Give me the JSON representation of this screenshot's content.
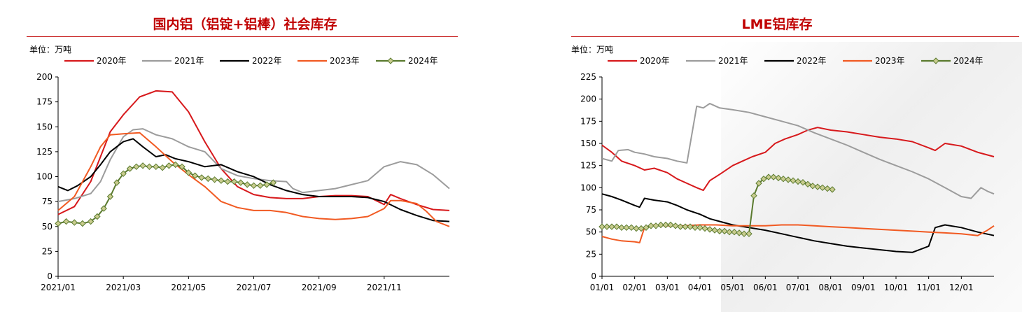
{
  "charts": [
    {
      "title": "国内铝（铝锭+铝棒）社会库存",
      "unit_label": "单位：万吨",
      "chart_data": {
        "type": "line",
        "title": "国内铝（铝锭+铝棒）社会库存",
        "unit": "万吨",
        "x_ticks": [
          "2021/01",
          "2021/03",
          "2021/05",
          "2021/07",
          "2021/09",
          "2021/11"
        ],
        "y_ticks": [
          "0",
          "25",
          "50",
          "75",
          "100",
          "125",
          "150",
          "175",
          "200"
        ],
        "ylim": [
          0,
          200
        ],
        "xlim": [
          0,
          12
        ],
        "grid": false,
        "legend": "top",
        "series": [
          {
            "name": "2020年",
            "color": "#d7191c",
            "marker": "none",
            "width": 2,
            "x": [
              0,
              0.5,
              1,
              1.3,
              1.6,
              2,
              2.5,
              3,
              3.5,
              4,
              4.5,
              5,
              5.5,
              6,
              6.5,
              7,
              7.5,
              8,
              8.5,
              9,
              9.5,
              10,
              10.2,
              10.5,
              11,
              11.5,
              12
            ],
            "y": [
              62,
              70,
              95,
              120,
              145,
              162,
              180,
              186,
              185,
              165,
              135,
              108,
              90,
              82,
              79,
              78,
              78,
              80,
              81,
              81,
              80,
              72,
              82,
              78,
              72,
              67,
              66
            ]
          },
          {
            "name": "2021年",
            "color": "#9c9c9c",
            "marker": "none",
            "width": 2,
            "x": [
              0,
              0.5,
              1,
              1.3,
              1.6,
              2,
              2.3,
              2.6,
              3,
              3.5,
              4,
              4.5,
              5,
              5.5,
              6,
              6.5,
              7,
              7.2,
              7.5,
              8,
              8.5,
              9,
              9.5,
              10,
              10.5,
              11,
              11.5,
              12
            ],
            "y": [
              75,
              78,
              83,
              95,
              117,
              140,
              147,
              148,
              142,
              138,
              130,
              125,
              108,
              101,
              98,
              96,
              95,
              88,
              84,
              86,
              88,
              92,
              96,
              110,
              115,
              112,
              102,
              88
            ]
          },
          {
            "name": "2022年",
            "color": "#000000",
            "marker": "none",
            "width": 2,
            "x": [
              0,
              0.3,
              0.6,
              1,
              1.3,
              1.6,
              2,
              2.3,
              2.6,
              3,
              3.3,
              3.6,
              4,
              4.5,
              5,
              5.5,
              6,
              6.5,
              7,
              7.5,
              8,
              8.5,
              9,
              9.5,
              10,
              10.5,
              11,
              11.5,
              12
            ],
            "y": [
              90,
              86,
              91,
              100,
              112,
              125,
              135,
              138,
              130,
              120,
              122,
              118,
              115,
              110,
              112,
              105,
              100,
              92,
              86,
              82,
              80,
              80,
              80,
              79,
              75,
              67,
              61,
              56,
              55
            ]
          },
          {
            "name": "2023年",
            "color": "#f15a22",
            "marker": "none",
            "width": 2,
            "x": [
              0,
              0.5,
              1,
              1.3,
              1.6,
              2,
              2.5,
              3,
              3.5,
              4,
              4.5,
              5,
              5.5,
              6,
              6.5,
              7,
              7.5,
              8,
              8.5,
              9,
              9.5,
              10,
              10.2,
              10.5,
              11,
              11.3,
              11.6,
              12
            ],
            "y": [
              66,
              80,
              110,
              130,
              142,
              143,
              144,
              130,
              115,
              102,
              90,
              75,
              69,
              66,
              66,
              64,
              60,
              58,
              57,
              58,
              60,
              68,
              76,
              76,
              73,
              65,
              55,
              50
            ]
          },
          {
            "name": "2024年",
            "color": "#5a7a2e",
            "marker": "diamond",
            "marker_fill": "#c9cc8f",
            "width": 2,
            "x": [
              0,
              0.25,
              0.5,
              0.75,
              1,
              1.2,
              1.4,
              1.6,
              1.8,
              2,
              2.2,
              2.4,
              2.6,
              2.8,
              3,
              3.2,
              3.4,
              3.6,
              3.8,
              4,
              4.2,
              4.4,
              4.6,
              4.8,
              5,
              5.2,
              5.4,
              5.6,
              5.8,
              6,
              6.2,
              6.4,
              6.6
            ],
            "y": [
              53,
              55,
              54,
              53,
              55,
              60,
              68,
              80,
              94,
              103,
              108,
              110,
              111,
              110,
              110,
              109,
              111,
              112,
              110,
              104,
              101,
              99,
              98,
              97,
              96,
              95,
              95,
              94,
              92,
              91,
              91,
              92,
              94
            ]
          }
        ]
      }
    },
    {
      "title": "LME铝库存",
      "unit_label": "单位：万吨",
      "chart_data": {
        "type": "line",
        "title": "LME铝库存",
        "unit": "万吨",
        "x_ticks": [
          "01/01",
          "02/01",
          "03/01",
          "04/01",
          "05/01",
          "06/01",
          "07/01",
          "08/01",
          "09/01",
          "10/01",
          "11/01",
          "12/01"
        ],
        "y_ticks": [
          "0",
          "25",
          "50",
          "75",
          "100",
          "125",
          "150",
          "175",
          "200",
          "225"
        ],
        "ylim": [
          0,
          225
        ],
        "xlim": [
          0,
          12
        ],
        "grid": false,
        "legend": "top",
        "series": [
          {
            "name": "2020年",
            "color": "#d7191c",
            "marker": "none",
            "width": 2,
            "x": [
              0,
              0.3,
              0.6,
              1,
              1.3,
              1.6,
              2,
              2.3,
              2.6,
              2.9,
              3.1,
              3.3,
              3.6,
              4,
              4.3,
              4.6,
              5,
              5.3,
              5.6,
              6,
              6.3,
              6.6,
              7,
              7.5,
              8,
              8.5,
              9,
              9.5,
              10,
              10.2,
              10.5,
              11,
              11.5,
              12
            ],
            "y": [
              148,
              140,
              130,
              125,
              120,
              122,
              117,
              110,
              105,
              100,
              97,
              108,
              115,
              125,
              130,
              135,
              140,
              150,
              155,
              160,
              165,
              168,
              165,
              163,
              160,
              157,
              155,
              152,
              145,
              142,
              150,
              147,
              140,
              135
            ]
          },
          {
            "name": "2021年",
            "color": "#9c9c9c",
            "marker": "none",
            "width": 2,
            "x": [
              0,
              0.3,
              0.5,
              0.8,
              1,
              1.3,
              1.6,
              2,
              2.3,
              2.6,
              2.9,
              3.1,
              3.3,
              3.6,
              4,
              4.5,
              5,
              5.5,
              6,
              6.5,
              7,
              7.5,
              8,
              8.5,
              9,
              9.5,
              10,
              10.5,
              11,
              11.3,
              11.6,
              11.8,
              12
            ],
            "y": [
              133,
              130,
              142,
              143,
              140,
              138,
              135,
              133,
              130,
              128,
              192,
              190,
              195,
              190,
              188,
              185,
              180,
              175,
              170,
              162,
              155,
              148,
              140,
              132,
              125,
              118,
              110,
              100,
              90,
              88,
              100,
              96,
              93
            ]
          },
          {
            "name": "2022年",
            "color": "#000000",
            "marker": "none",
            "width": 2,
            "x": [
              0,
              0.3,
              0.6,
              1,
              1.15,
              1.3,
              1.6,
              2,
              2.3,
              2.6,
              3,
              3.3,
              3.6,
              4,
              4.5,
              5,
              5.5,
              6,
              6.5,
              7,
              7.5,
              8,
              8.5,
              9,
              9.5,
              10,
              10.2,
              10.5,
              11,
              11.5,
              12
            ],
            "y": [
              93,
              90,
              86,
              80,
              78,
              88,
              86,
              84,
              80,
              75,
              70,
              65,
              62,
              58,
              55,
              52,
              48,
              44,
              40,
              37,
              34,
              32,
              30,
              28,
              27,
              34,
              55,
              58,
              55,
              50,
              46
            ]
          },
          {
            "name": "2023年",
            "color": "#f15a22",
            "marker": "none",
            "width": 2,
            "x": [
              0,
              0.3,
              0.6,
              1,
              1.15,
              1.3,
              1.6,
              2,
              2.5,
              3,
              3.5,
              4,
              4.5,
              5,
              5.5,
              6,
              6.5,
              7,
              7.5,
              8,
              8.5,
              9,
              9.5,
              10,
              10.5,
              11,
              11.5,
              11.8,
              12
            ],
            "y": [
              45,
              42,
              40,
              39,
              38,
              55,
              58,
              57,
              57,
              58,
              58,
              57,
              57,
              57,
              58,
              58,
              57,
              56,
              55,
              54,
              53,
              52,
              51,
              50,
              49,
              48,
              46,
              52,
              57
            ]
          },
          {
            "name": "2024年",
            "color": "#5a7a2e",
            "marker": "diamond",
            "marker_fill": "#c9cc8f",
            "width": 2,
            "x": [
              0,
              0.15,
              0.3,
              0.45,
              0.6,
              0.75,
              0.9,
              1.05,
              1.2,
              1.35,
              1.5,
              1.65,
              1.8,
              1.95,
              2.1,
              2.25,
              2.4,
              2.55,
              2.7,
              2.85,
              3,
              3.15,
              3.3,
              3.45,
              3.6,
              3.75,
              3.9,
              4.05,
              4.2,
              4.35,
              4.5,
              4.65,
              4.8,
              4.95,
              5.1,
              5.25,
              5.4,
              5.55,
              5.7,
              5.85,
              6,
              6.15,
              6.3,
              6.45,
              6.6,
              6.75,
              6.9,
              7.05
            ],
            "y": [
              56,
              56,
              56,
              56,
              55,
              55,
              55,
              54,
              54,
              55,
              57,
              57,
              58,
              58,
              58,
              57,
              56,
              56,
              56,
              55,
              55,
              54,
              53,
              52,
              51,
              51,
              50,
              50,
              49,
              48,
              48,
              91,
              105,
              110,
              112,
              112,
              111,
              110,
              109,
              108,
              107,
              106,
              104,
              102,
              101,
              100,
              99,
              98
            ]
          }
        ]
      }
    }
  ]
}
